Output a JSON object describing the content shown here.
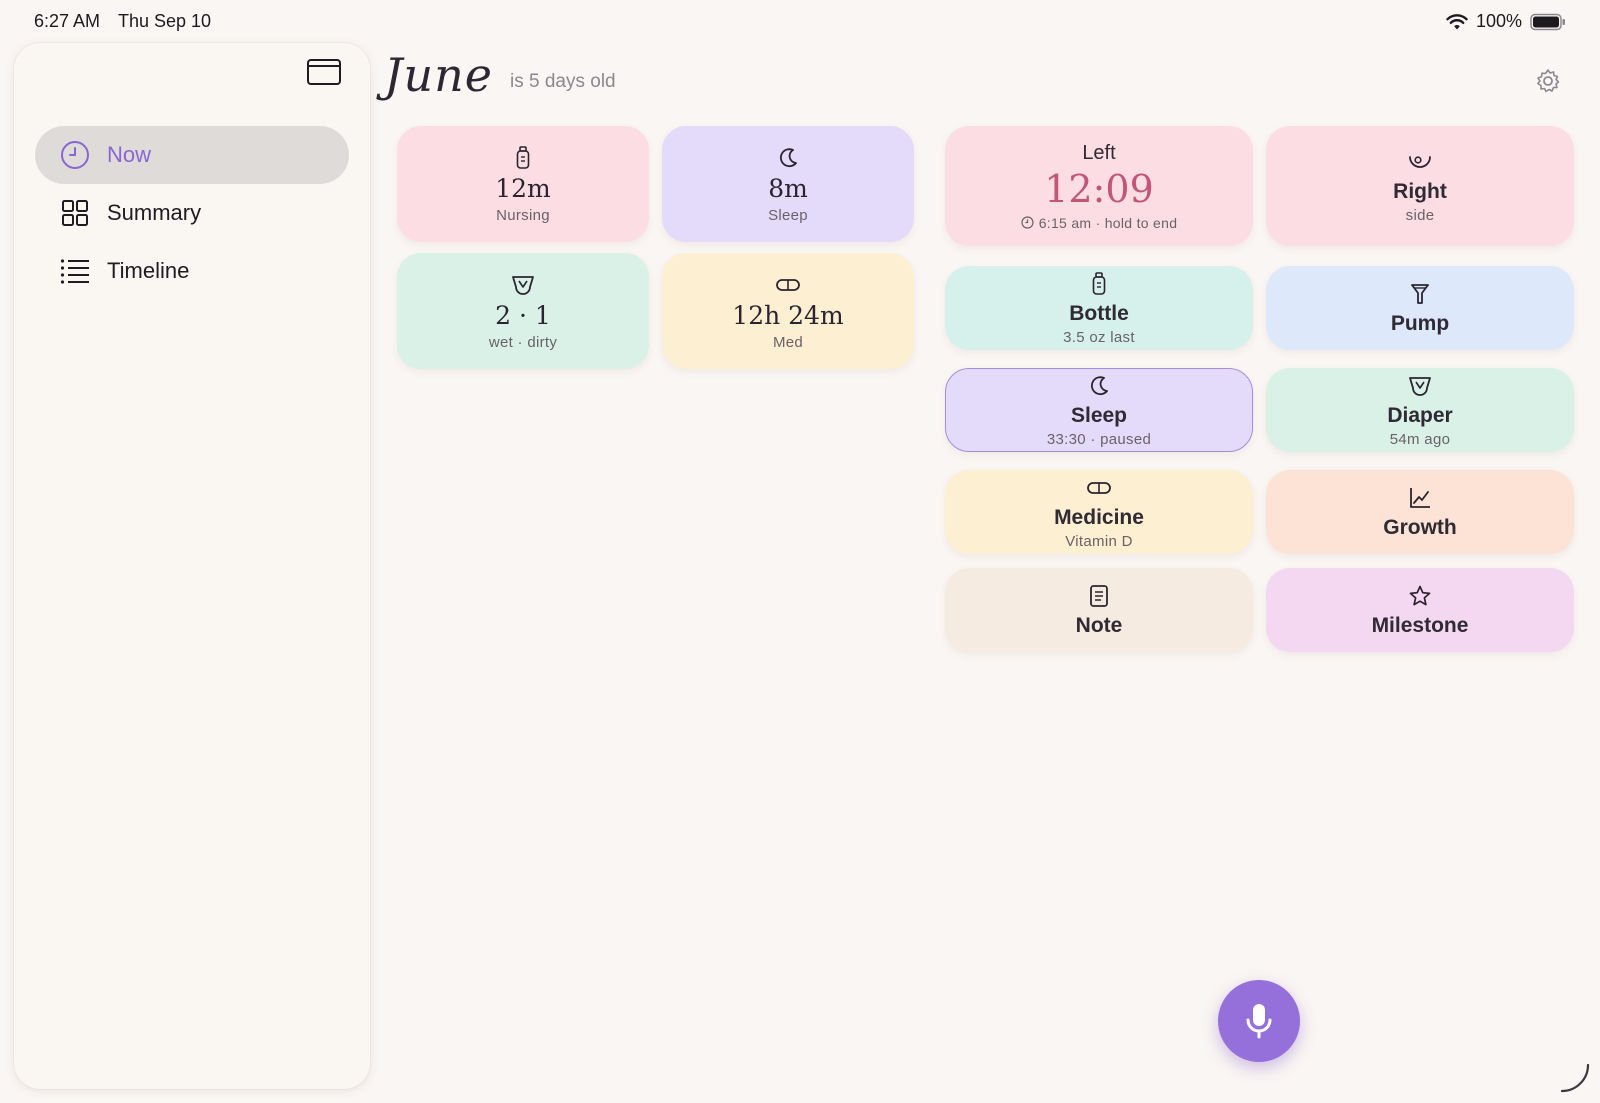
{
  "status_bar": {
    "time": "6:27 AM",
    "date": "Thu Sep 10",
    "battery": "100%"
  },
  "sidebar": {
    "items": [
      {
        "label": "Now",
        "icon": "clock-icon",
        "active": true
      },
      {
        "label": "Summary",
        "icon": "grid-icon",
        "active": false
      },
      {
        "label": "Timeline",
        "icon": "list-icon",
        "active": false
      }
    ]
  },
  "header": {
    "name": "June",
    "age": "is 5 days old"
  },
  "stats": [
    {
      "value": "12m",
      "label": "Nursing",
      "icon": "bottle-icon"
    },
    {
      "value": "8m",
      "label": "Sleep",
      "icon": "moon-icon"
    },
    {
      "value": "2 · 1",
      "label": "wet · dirty",
      "icon": "diaper-icon"
    },
    {
      "value": "12h 24m",
      "label": "Med",
      "icon": "pill-icon"
    }
  ],
  "timer": {
    "label": "Left",
    "value": "12:09",
    "hint": "6:15 am · hold to end"
  },
  "actions": {
    "right": {
      "title": "Right",
      "sub": "side"
    },
    "bottle": {
      "title": "Bottle",
      "sub": "3.5 oz last"
    },
    "pump": {
      "title": "Pump"
    },
    "sleep": {
      "title": "Sleep",
      "sub": "33:30 · paused"
    },
    "diaper": {
      "title": "Diaper",
      "sub": "54m ago"
    },
    "medicine": {
      "title": "Medicine",
      "sub": "Vitamin D"
    },
    "growth": {
      "title": "Growth"
    },
    "note": {
      "title": "Note"
    },
    "milestone": {
      "title": "Milestone"
    }
  },
  "colors": {
    "accent": "#9670da",
    "timer": "#c2567a",
    "active_nav": "#8a66d4"
  }
}
